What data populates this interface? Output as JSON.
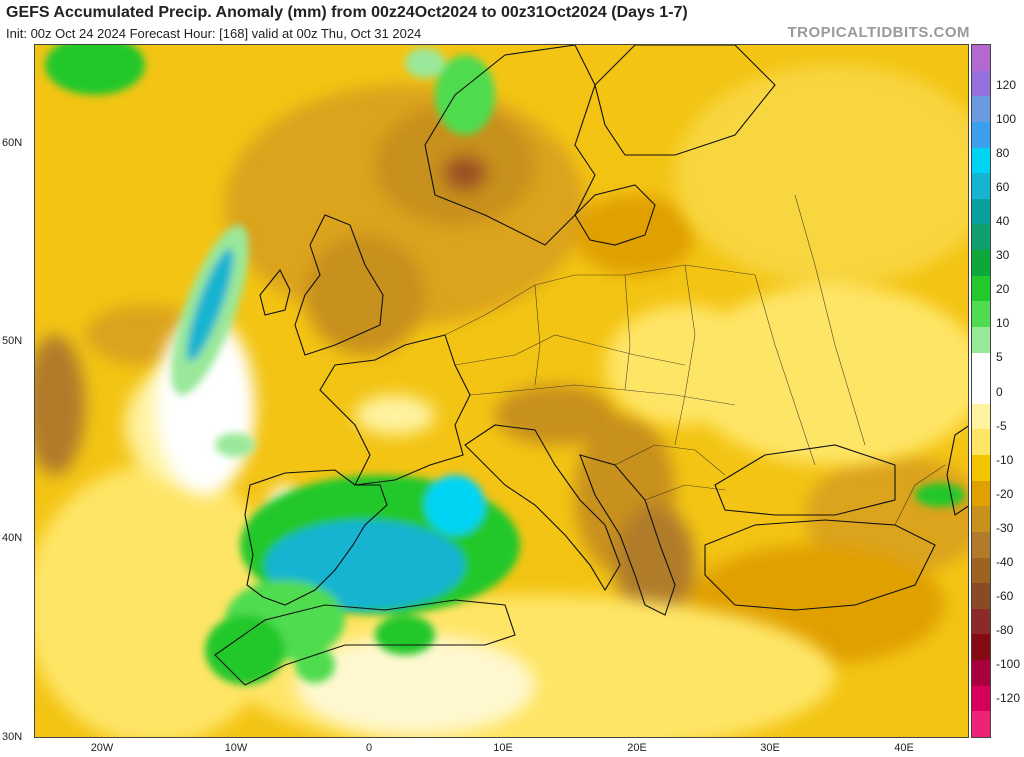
{
  "header": {
    "title": "GEFS Accumulated Precip. Anomaly (mm) from 00z24Oct2024 to 00z31Oct2024 (Days 1-7)",
    "subtitle": "Init: 00z Oct 24 2024   Forecast Hour: [168]   valid at 00z Thu, Oct 31 2024",
    "brand": "TROPICALTIDBITS.COM"
  },
  "axes": {
    "lat_labels": [
      "60N",
      "50N",
      "40N",
      "30N"
    ],
    "lon_labels": [
      "20W",
      "10W",
      "0",
      "10E",
      "20E",
      "30E",
      "40E"
    ]
  },
  "colorbar": {
    "labels": [
      "120",
      "100",
      "80",
      "60",
      "40",
      "30",
      "20",
      "10",
      "5",
      "0",
      "-5",
      "-10",
      "-20",
      "-30",
      "-40",
      "-60",
      "-80",
      "-100",
      "-120"
    ],
    "colors": [
      "#b36ad0",
      "#9370db",
      "#6a9be0",
      "#3aa0ee",
      "#00d4f5",
      "#15b4d0",
      "#0aa0a0",
      "#10a070",
      "#0ca83c",
      "#22c82c",
      "#50dc50",
      "#9ae89a",
      "#ffffff",
      "#ffffff",
      "#fff3a0",
      "#ffe566",
      "#f5c400",
      "#e0a000",
      "#c8901c",
      "#b07b2a",
      "#9c6420",
      "#8a4a24",
      "#8c2a2a",
      "#860a14",
      "#a8003e",
      "#d6005a",
      "#ee2277"
    ]
  }
}
